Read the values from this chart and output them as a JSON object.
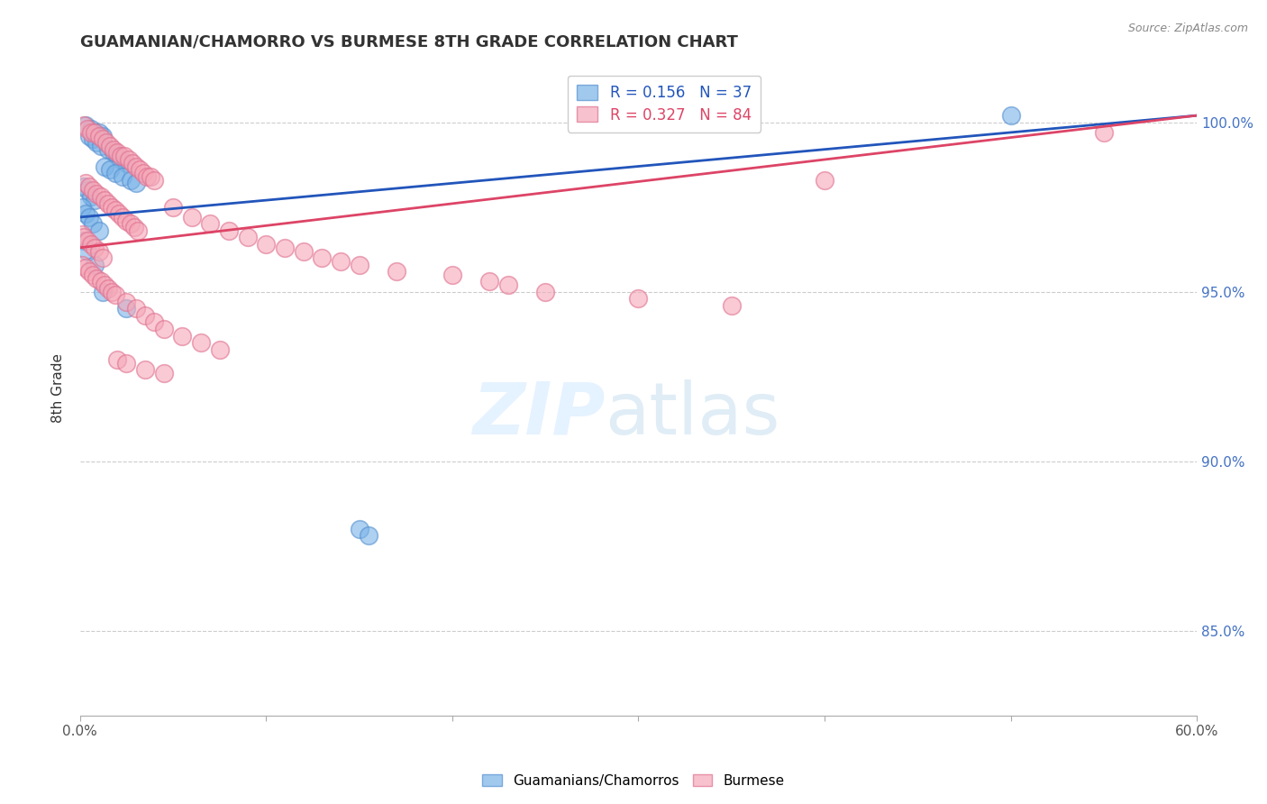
{
  "title": "GUAMANIAN/CHAMORRO VS BURMESE 8TH GRADE CORRELATION CHART",
  "source": "Source: ZipAtlas.com",
  "ylabel": "8th Grade",
  "xmin": 0.0,
  "xmax": 0.6,
  "ymin": 0.825,
  "ymax": 1.018,
  "xtick_positions": [
    0.0,
    0.1,
    0.2,
    0.3,
    0.4,
    0.5,
    0.6
  ],
  "xtick_labels": [
    "0.0%",
    "",
    "",
    "",
    "",
    "",
    "60.0%"
  ],
  "ytick_positions": [
    0.85,
    0.9,
    0.95,
    1.0
  ],
  "ytick_labels": [
    "85.0%",
    "90.0%",
    "95.0%",
    "100.0%"
  ],
  "blue_R": 0.156,
  "blue_N": 37,
  "pink_R": 0.327,
  "pink_N": 84,
  "blue_color": "#7ab3e8",
  "pink_color": "#f5a8b8",
  "blue_line_color": "#2255bb",
  "pink_line_color": "#dd4466",
  "blue_edge_color": "#5590d0",
  "pink_edge_color": "#e07090",
  "blue_points_x": [
    0.003,
    0.006,
    0.008,
    0.01,
    0.012,
    0.005,
    0.007,
    0.009,
    0.011,
    0.015,
    0.018,
    0.02,
    0.022,
    0.025,
    0.013,
    0.016,
    0.019,
    0.023,
    0.027,
    0.03,
    0.002,
    0.004,
    0.006,
    0.008,
    0.001,
    0.003,
    0.005,
    0.007,
    0.01,
    0.002,
    0.004,
    0.008,
    0.15,
    0.155,
    0.012,
    0.025,
    0.5
  ],
  "blue_points_y": [
    0.999,
    0.998,
    0.997,
    0.997,
    0.996,
    0.996,
    0.995,
    0.994,
    0.993,
    0.992,
    0.991,
    0.99,
    0.989,
    0.988,
    0.987,
    0.986,
    0.985,
    0.984,
    0.983,
    0.982,
    0.981,
    0.98,
    0.978,
    0.977,
    0.975,
    0.973,
    0.972,
    0.97,
    0.968,
    0.965,
    0.962,
    0.958,
    0.88,
    0.878,
    0.95,
    0.945,
    1.002
  ],
  "pink_points_x": [
    0.002,
    0.004,
    0.006,
    0.008,
    0.01,
    0.012,
    0.014,
    0.016,
    0.018,
    0.02,
    0.022,
    0.024,
    0.026,
    0.028,
    0.03,
    0.032,
    0.034,
    0.036,
    0.038,
    0.04,
    0.003,
    0.005,
    0.007,
    0.009,
    0.011,
    0.013,
    0.015,
    0.017,
    0.019,
    0.021,
    0.023,
    0.025,
    0.027,
    0.029,
    0.031,
    0.001,
    0.002,
    0.004,
    0.006,
    0.008,
    0.01,
    0.012,
    0.05,
    0.06,
    0.07,
    0.08,
    0.09,
    0.1,
    0.11,
    0.12,
    0.13,
    0.14,
    0.15,
    0.17,
    0.2,
    0.22,
    0.23,
    0.25,
    0.3,
    0.35,
    0.001,
    0.003,
    0.005,
    0.007,
    0.009,
    0.011,
    0.013,
    0.015,
    0.017,
    0.019,
    0.025,
    0.03,
    0.035,
    0.04,
    0.045,
    0.055,
    0.065,
    0.075,
    0.4,
    0.55,
    0.02,
    0.025,
    0.035,
    0.045
  ],
  "pink_points_y": [
    0.999,
    0.998,
    0.997,
    0.997,
    0.996,
    0.995,
    0.994,
    0.993,
    0.992,
    0.991,
    0.99,
    0.99,
    0.989,
    0.988,
    0.987,
    0.986,
    0.985,
    0.984,
    0.984,
    0.983,
    0.982,
    0.981,
    0.98,
    0.979,
    0.978,
    0.977,
    0.976,
    0.975,
    0.974,
    0.973,
    0.972,
    0.971,
    0.97,
    0.969,
    0.968,
    0.967,
    0.966,
    0.965,
    0.964,
    0.963,
    0.962,
    0.96,
    0.975,
    0.972,
    0.97,
    0.968,
    0.966,
    0.964,
    0.963,
    0.962,
    0.96,
    0.959,
    0.958,
    0.956,
    0.955,
    0.953,
    0.952,
    0.95,
    0.948,
    0.946,
    0.958,
    0.957,
    0.956,
    0.955,
    0.954,
    0.953,
    0.952,
    0.951,
    0.95,
    0.949,
    0.947,
    0.945,
    0.943,
    0.941,
    0.939,
    0.937,
    0.935,
    0.933,
    0.983,
    0.997,
    0.93,
    0.929,
    0.927,
    0.926
  ]
}
